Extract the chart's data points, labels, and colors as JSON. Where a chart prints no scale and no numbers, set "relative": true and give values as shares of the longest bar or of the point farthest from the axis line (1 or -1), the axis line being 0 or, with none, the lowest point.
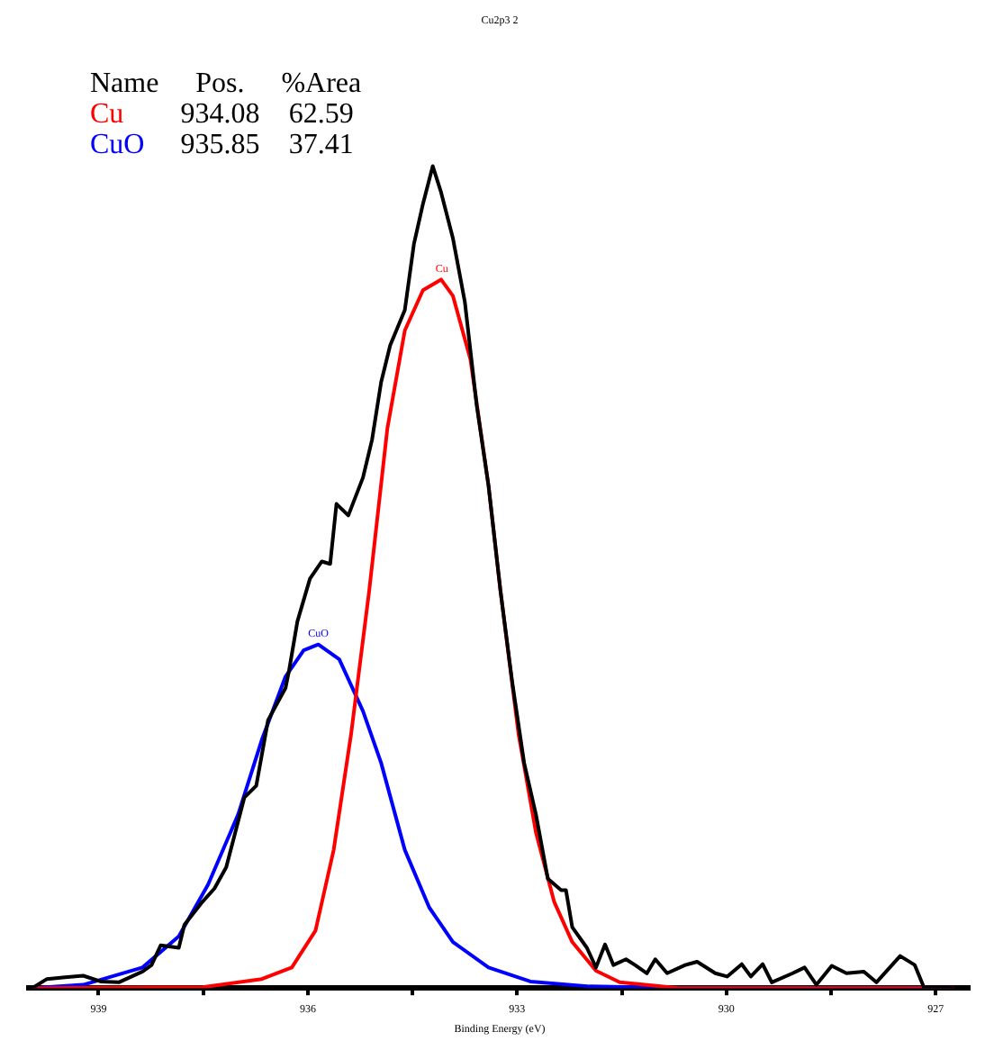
{
  "chart_data": {
    "type": "line",
    "title": "Cu2p3 2",
    "xlabel": "Binding Energy (eV)",
    "relative": true,
    "marker": "none",
    "line_style": "solid",
    "xlim": [
      940,
      926.5
    ],
    "xticks": [
      939,
      {
        "value": 937.5,
        "label": null
      },
      936,
      {
        "value": 934.5,
        "label": null
      },
      933,
      {
        "value": 931.5,
        "label": null
      },
      930,
      {
        "value": 928.5,
        "label": null
      },
      927
    ],
    "legend": "top left",
    "annotations": [
      "Name",
      "Pos.",
      "%Area",
      "934.08",
      "62.59",
      "935.85",
      "37.41",
      {
        "text": "Cu",
        "x": 934.08,
        "y": 0.862
      },
      {
        "text": "CuO",
        "x": 935.85,
        "y": 0.418
      }
    ],
    "series": [
      {
        "color": "#000000",
        "x": [
          939.95,
          939.74,
          939.48,
          939.22,
          938.97,
          938.71,
          938.37,
          938.24,
          938.11,
          937.85,
          937.77,
          937.51,
          937.34,
          937.17,
          936.91,
          936.74,
          936.57,
          936.32,
          936.27,
          936.15,
          935.97,
          935.8,
          935.68,
          935.59,
          935.42,
          935.21,
          935.08,
          934.95,
          934.82,
          934.61,
          934.48,
          934.35,
          934.21,
          934.09,
          933.92,
          933.75,
          933.58,
          933.41,
          933.24,
          933.07,
          932.9,
          932.73,
          932.56,
          932.37,
          932.3,
          932.21,
          932,
          931.87,
          931.74,
          931.62,
          931.44,
          931.31,
          931.14,
          931.02,
          930.85,
          930.59,
          930.42,
          930.16,
          929.99,
          929.78,
          929.65,
          929.48,
          929.35,
          929.05,
          928.88,
          928.71,
          928.49,
          928.28,
          928.03,
          927.85,
          927.51,
          927.3,
          927.17,
          926.74
        ],
        "values": [
          0,
          0.011,
          0.013,
          0.015,
          0.008,
          0.007,
          0.02,
          0.028,
          0.052,
          0.049,
          0.077,
          0.105,
          0.121,
          0.147,
          0.232,
          0.246,
          0.326,
          0.365,
          0.386,
          0.446,
          0.498,
          0.519,
          0.516,
          0.589,
          0.575,
          0.621,
          0.667,
          0.737,
          0.782,
          0.825,
          0.905,
          0.954,
          1,
          0.968,
          0.912,
          0.835,
          0.709,
          0.611,
          0.484,
          0.372,
          0.274,
          0.211,
          0.133,
          0.119,
          0.119,
          0.074,
          0.049,
          0.025,
          0.053,
          0.028,
          0.035,
          0.028,
          0.018,
          0.035,
          0.018,
          0.028,
          0.032,
          0.018,
          0.014,
          0.029,
          0.014,
          0.029,
          0.007,
          0.018,
          0.025,
          0.004,
          0.027,
          0.018,
          0.02,
          0.007,
          0.039,
          0.028,
          0.001,
          0
        ]
      },
      {
        "name": "Cu",
        "color": "#ff0000",
        "x": [
          939.95,
          937.51,
          936.66,
          936.23,
          935.89,
          935.63,
          935.38,
          935.12,
          934.86,
          934.61,
          934.35,
          934.09,
          933.92,
          933.67,
          933.41,
          933.24,
          932.98,
          932.73,
          932.47,
          932.21,
          931.87,
          931.53,
          930.68,
          926.74
        ],
        "values": [
          0,
          0.001,
          0.011,
          0.025,
          0.07,
          0.168,
          0.309,
          0.484,
          0.681,
          0.8,
          0.849,
          0.862,
          0.842,
          0.765,
          0.611,
          0.484,
          0.309,
          0.189,
          0.105,
          0.056,
          0.021,
          0.007,
          0,
          0
        ]
      },
      {
        "name": "CuO",
        "color": "#0000ff",
        "x": [
          939.95,
          939.22,
          938.37,
          937.85,
          937.43,
          937,
          936.66,
          936.32,
          936.06,
          935.85,
          935.55,
          935.21,
          934.95,
          934.61,
          934.26,
          933.92,
          933.41,
          932.81,
          931.96,
          930.68,
          926.74
        ],
        "values": [
          0,
          0.004,
          0.025,
          0.063,
          0.126,
          0.211,
          0.302,
          0.379,
          0.411,
          0.418,
          0.4,
          0.337,
          0.274,
          0.168,
          0.098,
          0.056,
          0.025,
          0.008,
          0.002,
          0,
          0
        ]
      }
    ]
  }
}
